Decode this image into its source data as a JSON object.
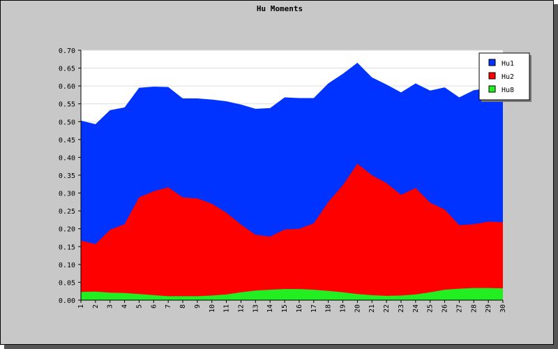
{
  "colors": {
    "background": "#c8c8c8",
    "plot_background": "#ffffff",
    "Hu1": "#0033ff",
    "Hu2": "#ff0000",
    "Hu8": "#22ee22"
  },
  "chart_data": {
    "type": "area",
    "stacked": false,
    "title": "Hu Moments",
    "xlabel": "",
    "ylabel": "",
    "ylim": [
      0,
      0.7
    ],
    "grid": true,
    "legend_position": "top-right",
    "yticks": [
      "0.00",
      "0.05",
      "0.10",
      "0.15",
      "0.20",
      "0.25",
      "0.30",
      "0.35",
      "0.40",
      "0.45",
      "0.50",
      "0.55",
      "0.60",
      "0.65",
      "0.70"
    ],
    "categories": [
      "1",
      "2",
      "3",
      "4",
      "5",
      "6",
      "7",
      "8",
      "9",
      "10",
      "11",
      "12",
      "13",
      "14",
      "15",
      "16",
      "17",
      "18",
      "19",
      "20",
      "21",
      "22",
      "23",
      "24",
      "25",
      "26",
      "27",
      "28",
      "29",
      "30"
    ],
    "series": [
      {
        "name": "Hu1",
        "color": "#0033ff",
        "values": [
          0.503,
          0.493,
          0.532,
          0.54,
          0.595,
          0.598,
          0.597,
          0.565,
          0.565,
          0.562,
          0.557,
          0.548,
          0.536,
          0.538,
          0.568,
          0.566,
          0.566,
          0.607,
          0.634,
          0.665,
          0.624,
          0.604,
          0.582,
          0.607,
          0.587,
          0.596,
          0.568,
          0.588,
          0.594,
          0.557
        ]
      },
      {
        "name": "Hu2",
        "color": "#ff0000",
        "values": [
          0.167,
          0.157,
          0.197,
          0.213,
          0.288,
          0.305,
          0.316,
          0.288,
          0.285,
          0.27,
          0.245,
          0.212,
          0.183,
          0.178,
          0.198,
          0.2,
          0.215,
          0.275,
          0.322,
          0.382,
          0.35,
          0.328,
          0.295,
          0.314,
          0.273,
          0.254,
          0.21,
          0.213,
          0.22,
          0.218
        ]
      },
      {
        "name": "Hu8",
        "color": "#22ee22",
        "values": [
          0.023,
          0.024,
          0.021,
          0.02,
          0.017,
          0.014,
          0.011,
          0.011,
          0.011,
          0.013,
          0.016,
          0.022,
          0.027,
          0.029,
          0.031,
          0.031,
          0.029,
          0.026,
          0.022,
          0.017,
          0.014,
          0.012,
          0.013,
          0.016,
          0.022,
          0.029,
          0.032,
          0.034,
          0.034,
          0.033
        ]
      }
    ]
  }
}
